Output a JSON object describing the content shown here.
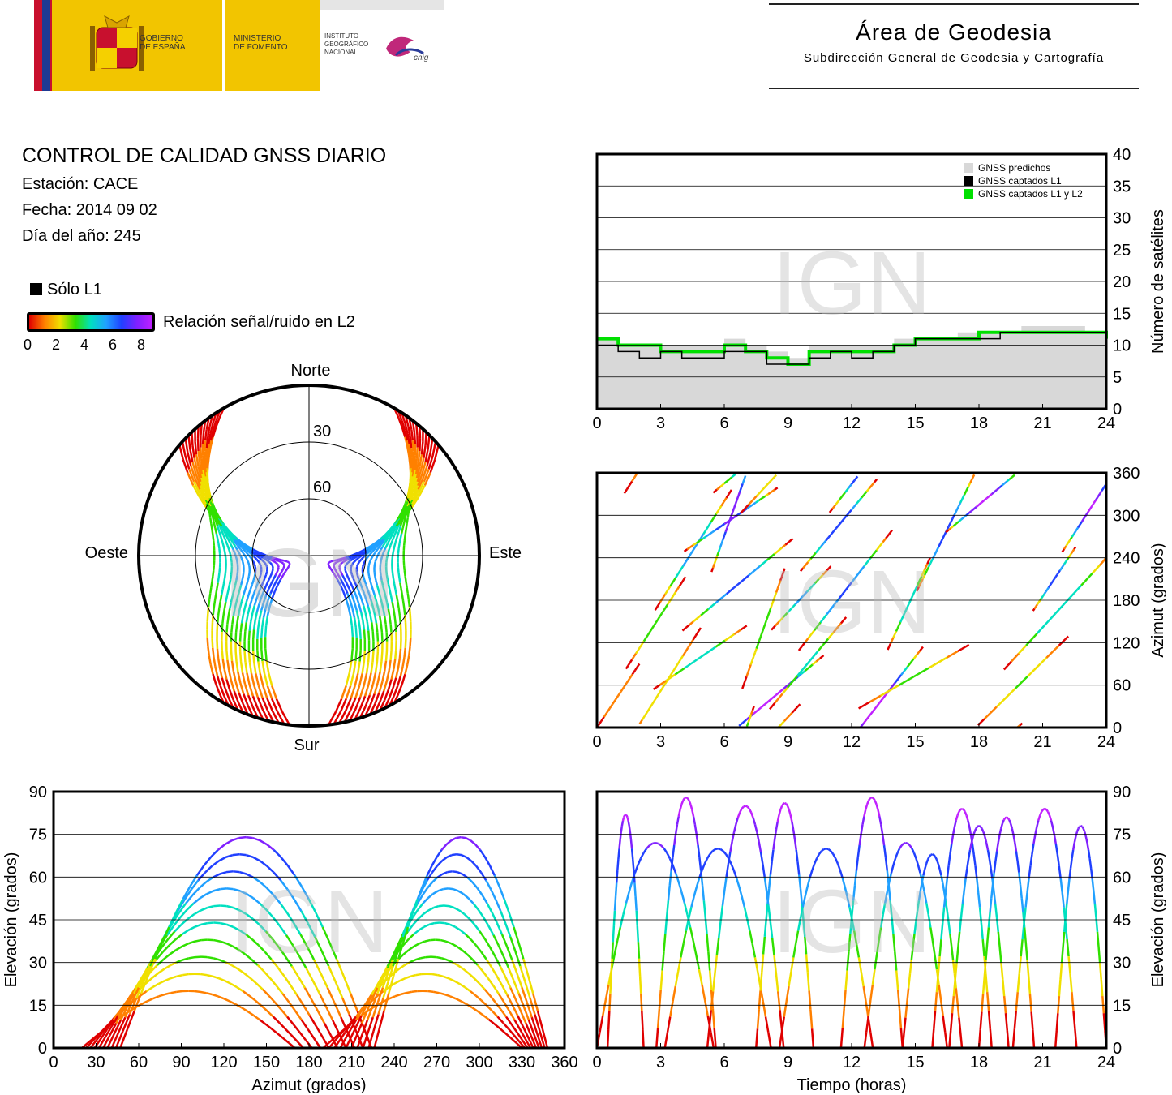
{
  "header": {
    "gobierno": "GOBIERNO\nDE ESPAÑA",
    "ministerio": "MINISTERIO\nDE FOMENTO",
    "instituto": "INSTITUTO\nGEOGRÁFICO\nNACIONAL",
    "cnig": "cnig",
    "area_title": "Área de Geodesia",
    "area_subtitle": "Subdirección General de Geodesia y Cartografía"
  },
  "info": {
    "title": "CONTROL DE CALIDAD GNSS DIARIO",
    "station": "Estación: CACE",
    "date": "Fecha: 2014 09 02",
    "doy": "Día del año: 245"
  },
  "legend": {
    "l1_only": "Sólo L1",
    "snr_label": "Relación señal/ruido en L2",
    "snr_ticks": [
      "0",
      "2",
      "4",
      "6",
      "8"
    ]
  },
  "watermark": "IGN",
  "colors": {
    "predicted": "#d8d8d8",
    "l1": "#000000",
    "l1l2": "#00e000",
    "snr_scale": [
      "#e00000",
      "#ff8000",
      "#f0e000",
      "#30e000",
      "#00e0c0",
      "#20a0ff",
      "#2040ff",
      "#8020ff",
      "#c020ff"
    ]
  },
  "chart_data": [
    {
      "type": "polar-skyplot",
      "labels": {
        "north": "Norte",
        "south": "Sur",
        "east": "Este",
        "west": "Oeste"
      },
      "rings": [
        "30",
        "60"
      ],
      "elevation_rings": [
        30,
        60
      ]
    },
    {
      "type": "area",
      "ylabel": "Número de satélites",
      "xlim": [
        0,
        24
      ],
      "ylim": [
        0,
        40
      ],
      "xticks": [
        "0",
        "3",
        "6",
        "9",
        "12",
        "15",
        "18",
        "21",
        "24"
      ],
      "yticks": [
        "0",
        "5",
        "10",
        "15",
        "20",
        "25",
        "30",
        "35",
        "40"
      ],
      "legend": [
        "GNSS predichos",
        "GNSS captados L1",
        "GNSS captados L1 y L2"
      ],
      "legend_position": "top-right",
      "series": [
        {
          "name": "GNSS predichos",
          "x": [
            0,
            1,
            2,
            3,
            4,
            5,
            6,
            7,
            8,
            9,
            10,
            11,
            12,
            13,
            14,
            15,
            16,
            17,
            18,
            19,
            20,
            21,
            22,
            23,
            24
          ],
          "values": [
            11,
            10,
            10,
            10,
            10,
            10,
            11,
            10,
            9,
            8,
            10,
            10,
            10,
            10,
            11,
            11,
            11,
            12,
            12,
            12,
            13,
            13,
            13,
            12,
            11
          ]
        },
        {
          "name": "GNSS captados L1",
          "x": [
            0,
            1,
            2,
            3,
            4,
            5,
            6,
            7,
            8,
            9,
            10,
            11,
            12,
            13,
            14,
            15,
            16,
            17,
            18,
            19,
            20,
            21,
            22,
            23,
            24
          ],
          "values": [
            11,
            10,
            10,
            9,
            9,
            9,
            10,
            9,
            8,
            7,
            9,
            9,
            9,
            9,
            10,
            11,
            11,
            11,
            12,
            12,
            12,
            12,
            12,
            12,
            11
          ]
        },
        {
          "name": "GNSS captados L1 y L2",
          "x": [
            0,
            1,
            2,
            3,
            4,
            5,
            6,
            7,
            8,
            9,
            10,
            11,
            12,
            13,
            14,
            15,
            16,
            17,
            18,
            19,
            20,
            21,
            22,
            23,
            24
          ],
          "values": [
            10,
            9,
            8,
            9,
            8,
            8,
            9,
            9,
            7,
            7,
            8,
            9,
            8,
            9,
            10,
            11,
            11,
            11,
            11,
            12,
            12,
            12,
            12,
            12,
            10
          ]
        }
      ]
    },
    {
      "type": "scatter",
      "ylabel": "Azimut (grados)",
      "xlim": [
        0,
        24
      ],
      "ylim": [
        0,
        360
      ],
      "xticks": [
        "0",
        "3",
        "6",
        "9",
        "12",
        "15",
        "18",
        "21",
        "24"
      ],
      "yticks": [
        "0",
        "60",
        "120",
        "180",
        "240",
        "300",
        "360"
      ]
    },
    {
      "type": "scatter",
      "xlabel": "Azimut (grados)",
      "ylabel": "Elevación (grados)",
      "xlim": [
        0,
        360
      ],
      "ylim": [
        0,
        90
      ],
      "xticks": [
        "0",
        "30",
        "60",
        "90",
        "120",
        "150",
        "180",
        "210",
        "240",
        "270",
        "300",
        "330",
        "360"
      ],
      "yticks": [
        "0",
        "15",
        "30",
        "45",
        "60",
        "75",
        "90"
      ]
    },
    {
      "type": "scatter",
      "xlabel": "Tiempo (horas)",
      "ylabel": "Elevación (grados)",
      "xlim": [
        0,
        24
      ],
      "ylim": [
        0,
        90
      ],
      "xticks": [
        "0",
        "3",
        "6",
        "9",
        "12",
        "15",
        "18",
        "21",
        "24"
      ],
      "yticks": [
        "0",
        "15",
        "30",
        "45",
        "60",
        "75",
        "90"
      ],
      "passes": [
        {
          "start": 0.0,
          "end": 5.5,
          "peak": 72
        },
        {
          "start": 0.5,
          "end": 2.2,
          "peak": 82
        },
        {
          "start": 2.8,
          "end": 5.6,
          "peak": 88
        },
        {
          "start": 3.2,
          "end": 8.2,
          "peak": 70
        },
        {
          "start": 5.2,
          "end": 8.8,
          "peak": 85
        },
        {
          "start": 7.5,
          "end": 10.2,
          "peak": 86
        },
        {
          "start": 8.6,
          "end": 13.0,
          "peak": 70
        },
        {
          "start": 11.5,
          "end": 14.4,
          "peak": 88
        },
        {
          "start": 12.6,
          "end": 16.5,
          "peak": 72
        },
        {
          "start": 14.4,
          "end": 17.2,
          "peak": 68
        },
        {
          "start": 15.8,
          "end": 18.6,
          "peak": 84
        },
        {
          "start": 16.6,
          "end": 19.4,
          "peak": 78
        },
        {
          "start": 18.0,
          "end": 20.6,
          "peak": 81
        },
        {
          "start": 19.6,
          "end": 22.6,
          "peak": 84
        },
        {
          "start": 21.6,
          "end": 24.0,
          "peak": 78
        }
      ]
    }
  ]
}
